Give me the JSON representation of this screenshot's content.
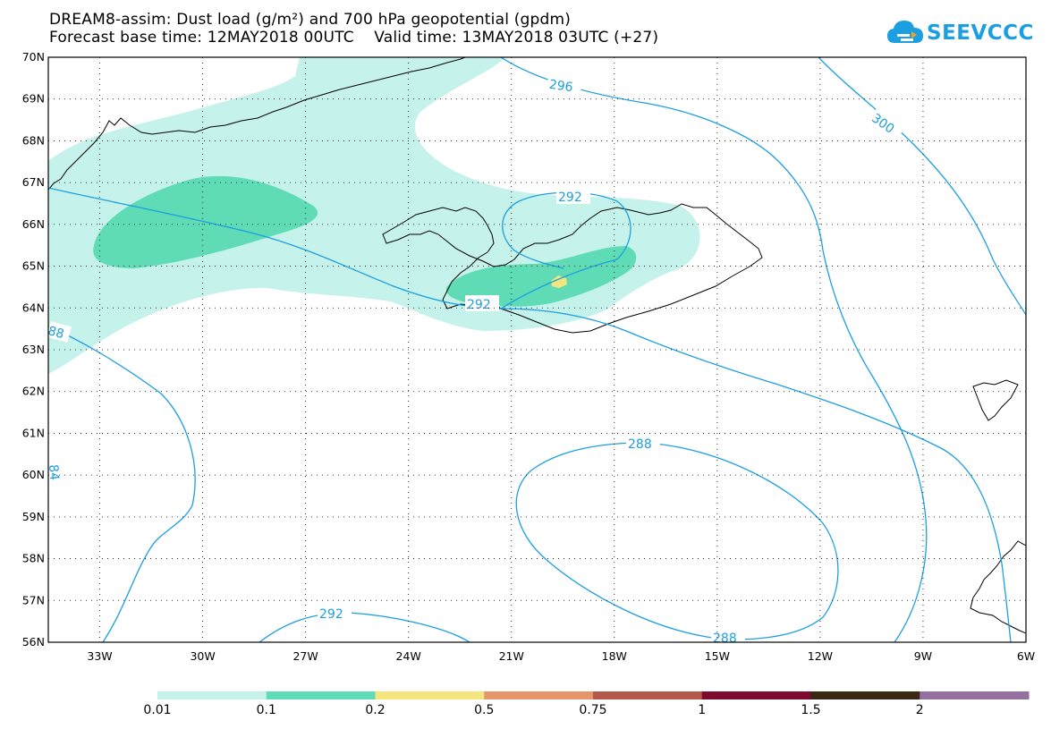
{
  "header": {
    "title_line_1": "DREAM8-assim: Dust load (g/m²) and 700 hPa geopotential (gpdm)",
    "title_line_2": "Forecast base time: 12MAY2018 00UTC    Valid time: 13MAY2018 03UTC (+27)"
  },
  "logo": {
    "text": "SEEVCCC",
    "color": "#1c9fe0"
  },
  "map": {
    "lat_range": [
      56,
      70
    ],
    "lon_range": [
      -34.5,
      -6
    ],
    "lat_labels": [
      "70N",
      "69N",
      "68N",
      "67N",
      "66N",
      "65N",
      "64N",
      "63N",
      "62N",
      "61N",
      "60N",
      "59N",
      "58N",
      "57N",
      "56N"
    ],
    "lon_labels": [
      "33W",
      "30W",
      "27W",
      "24W",
      "21W",
      "18W",
      "15W",
      "12W",
      "9W",
      "6W"
    ],
    "grid": "dotted",
    "contour_color": "#1c9fe0",
    "contour_labels": [
      "296",
      "300",
      "292",
      "292",
      "88",
      "84",
      "288",
      "288",
      "292"
    ]
  },
  "legend": {
    "colors": [
      "#c5f2ea",
      "#5fdcb6",
      "#f5e57f",
      "#e5966a",
      "#b5584c",
      "#7e0a2f",
      "#3a2814",
      "#94719e"
    ],
    "labels": [
      "0.01",
      "0.1",
      "0.2",
      "0.5",
      "0.75",
      "1",
      "1.5",
      "2"
    ]
  }
}
